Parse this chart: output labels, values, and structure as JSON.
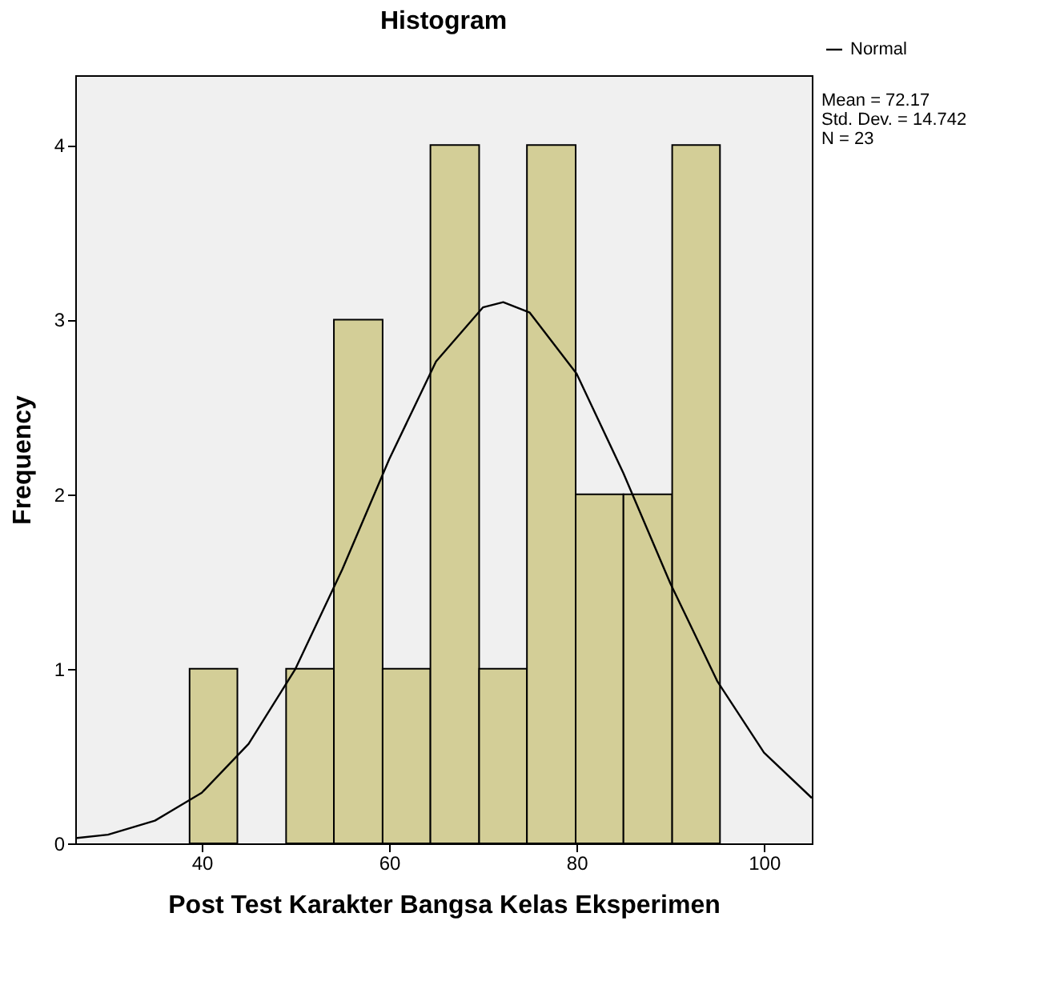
{
  "chart_data": {
    "type": "histogram",
    "title": "Histogram",
    "xlabel": "Post Test Karakter Bangsa Kelas Eksperimen",
    "ylabel": "Frequency",
    "bins": [
      38.7,
      43.8,
      49.0,
      54.1,
      59.3,
      64.4,
      69.6,
      74.7,
      79.9,
      85.0,
      90.2,
      95.3
    ],
    "values": [
      1,
      0,
      1,
      3,
      1,
      4,
      1,
      4,
      2,
      2,
      4
    ],
    "color": "#d3ce97",
    "series": [
      {
        "name": "Normal",
        "type": "line",
        "color": "#000000",
        "x": [
          26.5,
          30,
          35,
          40,
          45,
          50,
          55,
          60,
          65,
          70,
          72.17,
          75,
          80,
          85,
          90,
          95,
          100,
          105.1
        ],
        "values": [
          0.03,
          0.05,
          0.13,
          0.29,
          0.57,
          1.0,
          1.57,
          2.2,
          2.76,
          3.07,
          3.1,
          3.04,
          2.69,
          2.12,
          1.49,
          0.93,
          0.52,
          0.26
        ]
      }
    ],
    "xlim": [
      26.5,
      105.1
    ],
    "xticks": [
      40,
      60,
      80,
      100
    ],
    "ylim": [
      0,
      4.4
    ],
    "yticks": [
      0,
      1,
      2,
      3,
      4
    ],
    "grid": false,
    "legend": "top right",
    "annotations": [
      "Mean = 72.17",
      "Std. Dev. = 14.742",
      "N = 23"
    ]
  }
}
